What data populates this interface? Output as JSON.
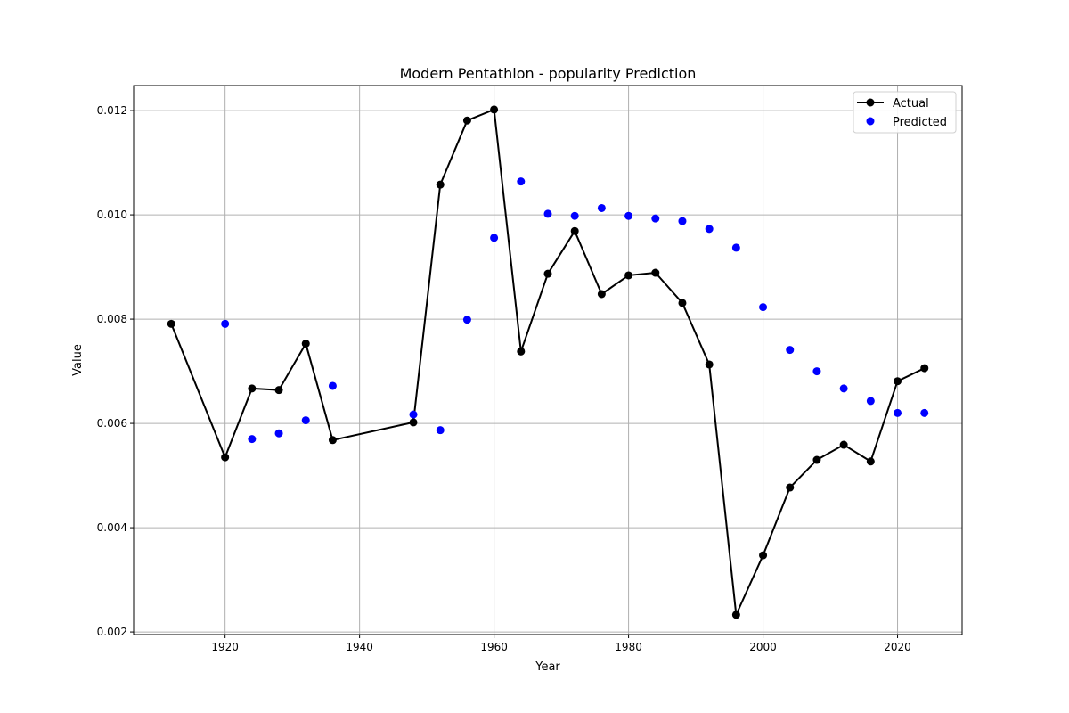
{
  "chart_data": {
    "type": "line",
    "title": "Modern Pentathlon - popularity Prediction",
    "xlabel": "Year",
    "ylabel": "Value",
    "xlim": [
      1906.4,
      2029.6
    ],
    "ylim": [
      0.00195,
      0.01248
    ],
    "x_ticks": [
      1920,
      1940,
      1960,
      1980,
      2000,
      2020
    ],
    "y_ticks": [
      0.002,
      0.004,
      0.006,
      0.008,
      0.01,
      0.012
    ],
    "x_tick_labels": [
      "1920",
      "1940",
      "1960",
      "1980",
      "2000",
      "2020"
    ],
    "y_tick_labels": [
      "0.002",
      "0.004",
      "0.006",
      "0.008",
      "0.010",
      "0.012"
    ],
    "grid": true,
    "legend_position": "top-right",
    "series": [
      {
        "name": "Actual",
        "style": "line-markers",
        "color": "#000000",
        "x": [
          1912,
          1920,
          1924,
          1928,
          1932,
          1936,
          1948,
          1952,
          1956,
          1960,
          1964,
          1968,
          1972,
          1976,
          1980,
          1984,
          1988,
          1992,
          1996,
          2000,
          2004,
          2008,
          2012,
          2016,
          2020,
          2024
        ],
        "y": [
          0.00791,
          0.00535,
          0.00667,
          0.00664,
          0.00753,
          0.00568,
          0.00602,
          0.01058,
          0.01181,
          0.01202,
          0.00738,
          0.00887,
          0.00969,
          0.00848,
          0.00884,
          0.00889,
          0.00831,
          0.00713,
          0.00233,
          0.00347,
          0.00477,
          0.0053,
          0.00559,
          0.00527,
          0.00681,
          0.00706
        ]
      },
      {
        "name": "Predicted",
        "style": "scatter",
        "color": "#0000ff",
        "x": [
          1920,
          1924,
          1928,
          1932,
          1936,
          1948,
          1952,
          1956,
          1960,
          1964,
          1968,
          1972,
          1976,
          1980,
          1984,
          1988,
          1992,
          1996,
          2000,
          2004,
          2008,
          2012,
          2016,
          2020,
          2024
        ],
        "y": [
          0.00791,
          0.0057,
          0.00581,
          0.00606,
          0.00672,
          0.00617,
          0.00587,
          0.00799,
          0.00956,
          0.01064,
          0.01002,
          0.00998,
          0.01013,
          0.00998,
          0.00993,
          0.00988,
          0.00973,
          0.00937,
          0.00823,
          0.00741,
          0.007,
          0.00667,
          0.00643,
          0.0062,
          0.0062
        ]
      }
    ]
  }
}
